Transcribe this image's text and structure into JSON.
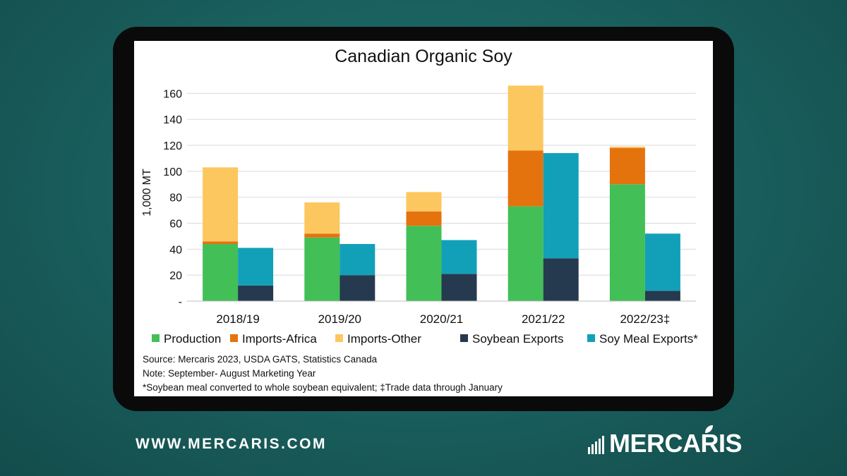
{
  "chart_data": {
    "type": "bar",
    "title": "Canadian Organic Soy",
    "ylabel": "1,000 MT",
    "xlabel": "",
    "ylim": [
      0,
      170
    ],
    "yticks": [
      {
        "value": 0,
        "label": "-"
      },
      {
        "value": 20,
        "label": "20"
      },
      {
        "value": 40,
        "label": "40"
      },
      {
        "value": 60,
        "label": "60"
      },
      {
        "value": 80,
        "label": "80"
      },
      {
        "value": 100,
        "label": "100"
      },
      {
        "value": 120,
        "label": "120"
      },
      {
        "value": 140,
        "label": "140"
      },
      {
        "value": 160,
        "label": "160"
      }
    ],
    "grid": "horizontal",
    "legend_position": "bottom",
    "categories": [
      "2018/19",
      "2019/20",
      "2020/21",
      "2021/22",
      "2022/23‡"
    ],
    "stacks": [
      {
        "stack": "supply",
        "series": [
          "Production",
          "Imports-Africa",
          "Imports-Other"
        ]
      },
      {
        "stack": "exports",
        "series": [
          "Soybean Exports",
          "Soy Meal Exports*"
        ]
      }
    ],
    "series": [
      {
        "name": "Production",
        "stack": "supply",
        "color": "#43bf58",
        "values": [
          44,
          49,
          58,
          73,
          90
        ]
      },
      {
        "name": "Imports-Africa",
        "stack": "supply",
        "color": "#e4730e",
        "values": [
          2,
          3,
          11,
          43,
          28
        ]
      },
      {
        "name": "Imports-Other",
        "stack": "supply",
        "color": "#fcc75e",
        "values": [
          57,
          24,
          15,
          50,
          1
        ]
      },
      {
        "name": "Soybean Exports",
        "stack": "exports",
        "color": "#253a4f",
        "values": [
          12,
          20,
          21,
          33,
          8
        ]
      },
      {
        "name": "Soy Meal Exports*",
        "stack": "exports",
        "color": "#12a0b8",
        "values": [
          29,
          24,
          26,
          81,
          44
        ]
      }
    ],
    "footnotes": [
      "Source: Mercaris 2023, USDA GATS, Statistics Canada",
      "Note: September- August Marketing Year",
      "*Soybean meal converted to whole soybean equivalent; ‡Trade data through January"
    ]
  },
  "footer": {
    "website": "WWW.MERCARIS.COM",
    "logo_text": "MERCARIS"
  }
}
